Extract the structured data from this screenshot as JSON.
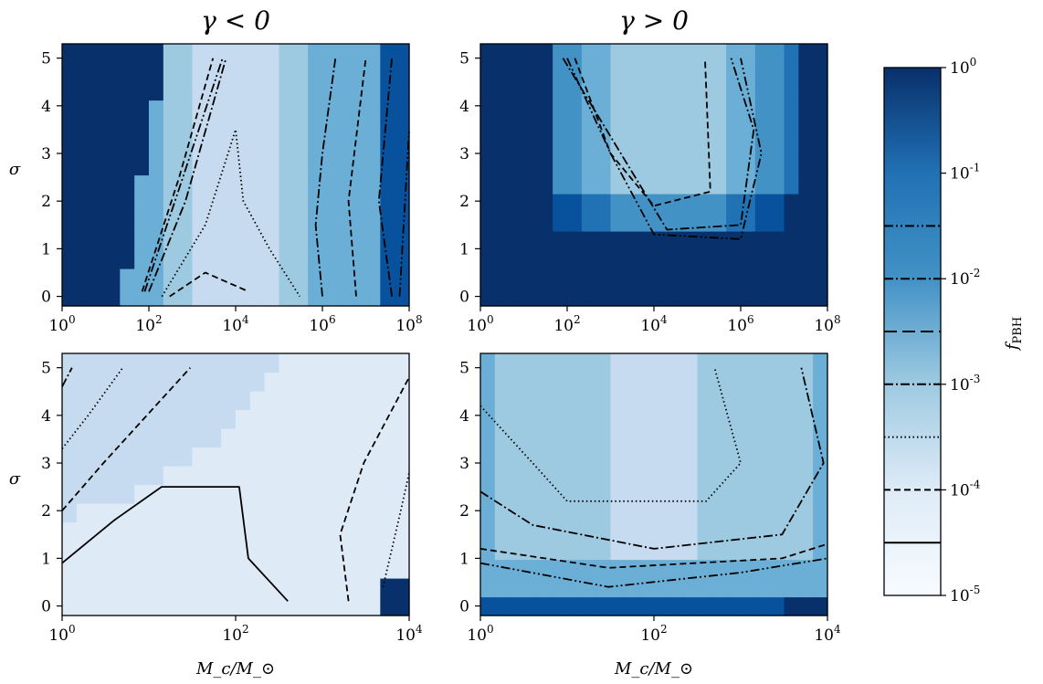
{
  "chart_data": [
    {
      "type": "heatmap",
      "panel": "top-left",
      "title": "γ < 0",
      "xlabel": "",
      "ylabel": "σ",
      "xscale": "log",
      "xlim": [
        1,
        100000000
      ],
      "ylim": [
        -0.2,
        5.3
      ],
      "xticks": [
        "10^0",
        "10^2",
        "10^4",
        "10^6",
        "10^8"
      ],
      "yticks": [
        "0",
        "1",
        "2",
        "3",
        "4",
        "5"
      ],
      "contours": [
        {
          "level": "10^-2",
          "style": "dashdotdot",
          "points": [
            [
              80,
              0.1
            ],
            [
              400,
              2
            ],
            [
              5000,
              5
            ]
          ]
        },
        {
          "level": "10^-2",
          "style": "dashdotdot",
          "points": [
            [
              60000000,
              0
            ],
            [
              100000000,
              3.5
            ]
          ]
        },
        {
          "level": "10^-3",
          "style": "dashdot",
          "points": [
            [
              100,
              0.1
            ],
            [
              700,
              2
            ],
            [
              6000,
              5
            ]
          ]
        },
        {
          "level": "10^-3",
          "style": "dashdot",
          "points": [
            [
              1000000,
              0
            ],
            [
              700000,
              1.5
            ],
            [
              1000000,
              3
            ],
            [
              2000000,
              5
            ]
          ]
        },
        {
          "level": "10^-3",
          "style": "dashdot",
          "points": [
            [
              40000000,
              0
            ],
            [
              20000000,
              2
            ],
            [
              40000000,
              5
            ]
          ]
        },
        {
          "level": "10^-3.5",
          "style": "dashed",
          "points": [
            [
              70,
              0.1
            ],
            [
              500,
              2.5
            ],
            [
              3000,
              5
            ]
          ]
        },
        {
          "level": "10^-3.5",
          "style": "dashed",
          "points": [
            [
              6000000,
              0
            ],
            [
              4000000,
              2
            ],
            [
              10000000,
              5
            ]
          ]
        },
        {
          "level": "10^-4",
          "style": "dotted",
          "points": [
            [
              200,
              0
            ],
            [
              2000,
              1.5
            ],
            [
              10000,
              3.5
            ],
            [
              15000,
              2
            ],
            [
              60000,
              1
            ],
            [
              300000,
              0
            ]
          ]
        },
        {
          "level": "10^-4.5",
          "style": "dashed",
          "points": [
            [
              300,
              0
            ],
            [
              2000,
              0.5
            ],
            [
              20000,
              0.1
            ]
          ]
        }
      ]
    },
    {
      "type": "heatmap",
      "panel": "top-right",
      "title": "γ > 0",
      "xlabel": "",
      "ylabel": "",
      "xscale": "log",
      "xlim": [
        1,
        100000000
      ],
      "ylim": [
        -0.2,
        5.3
      ],
      "xticks": [
        "10^0",
        "10^2",
        "10^4",
        "10^6",
        "10^8"
      ],
      "yticks": [
        "0",
        "1",
        "2",
        "3",
        "4",
        "5"
      ],
      "contours": [
        {
          "level": "10^-2",
          "style": "dashdotdot",
          "points": [
            [
              100,
              5
            ],
            [
              1000,
              3
            ],
            [
              10000,
              1.3
            ],
            [
              1000000,
              1.2
            ],
            [
              3000000,
              3
            ],
            [
              1000000,
              5
            ]
          ]
        },
        {
          "level": "10^-2.5",
          "style": "dashdot",
          "points": [
            [
              80,
              5
            ],
            [
              800,
              3.5
            ],
            [
              20000,
              1.4
            ],
            [
              1000000,
              1.5
            ],
            [
              2000000,
              3.5
            ],
            [
              600000,
              5
            ]
          ]
        },
        {
          "level": "10^-3",
          "style": "dashed",
          "points": [
            [
              150,
              5
            ],
            [
              1000,
              3
            ],
            [
              10000,
              1.9
            ],
            [
              200000,
              2.2
            ],
            [
              150000,
              5
            ]
          ]
        }
      ]
    },
    {
      "type": "heatmap",
      "panel": "bottom-left",
      "title": "",
      "xlabel": "M_c/M_⊙",
      "ylabel": "σ",
      "xscale": "log",
      "xlim": [
        1,
        10000
      ],
      "ylim": [
        -0.2,
        5.3
      ],
      "xticks": [
        "10^0",
        "10^2",
        "10^4"
      ],
      "yticks": [
        "0",
        "1",
        "2",
        "3",
        "4",
        "5"
      ],
      "contours": [
        {
          "level": "10^-3.5",
          "style": "dashdot",
          "points": [
            [
              1,
              4.6
            ],
            [
              1.3,
              5
            ]
          ]
        },
        {
          "level": "10^-4",
          "style": "dotted",
          "points": [
            [
              1,
              3.3
            ],
            [
              2,
              4
            ],
            [
              5,
              5
            ]
          ]
        },
        {
          "level": "10^-4",
          "style": "dotted",
          "points": [
            [
              5000,
              0.4
            ],
            [
              8000,
              2
            ],
            [
              10000,
              2.8
            ]
          ]
        },
        {
          "level": "10^-4.5",
          "style": "dashed",
          "points": [
            [
              1,
              2
            ],
            [
              3,
              3
            ],
            [
              30,
              5
            ]
          ]
        },
        {
          "level": "10^-4.5",
          "style": "dashed",
          "points": [
            [
              2000,
              0.1
            ],
            [
              1600,
              1.5
            ],
            [
              3000,
              3
            ],
            [
              10000,
              4.8
            ]
          ]
        },
        {
          "level": "10^-5",
          "style": "solid",
          "points": [
            [
              1,
              0.9
            ],
            [
              4,
              1.8
            ],
            [
              14,
              2.5
            ],
            [
              110,
              2.5
            ],
            [
              140,
              1
            ],
            [
              400,
              0.1
            ]
          ]
        }
      ]
    },
    {
      "type": "heatmap",
      "panel": "bottom-right",
      "title": "",
      "xlabel": "M_c/M_⊙",
      "ylabel": "",
      "xscale": "log",
      "xlim": [
        1,
        10000
      ],
      "ylim": [
        -0.2,
        5.3
      ],
      "xticks": [
        "10^0",
        "10^2",
        "10^4"
      ],
      "yticks": [
        "0",
        "1",
        "2",
        "3",
        "4",
        "5"
      ],
      "contours": [
        {
          "level": "10^-4",
          "style": "dotted",
          "points": [
            [
              1,
              4.2
            ],
            [
              4,
              3
            ],
            [
              10,
              2.2
            ],
            [
              400,
              2.2
            ],
            [
              1000,
              3
            ],
            [
              500,
              5
            ]
          ]
        },
        {
          "level": "10^-3",
          "style": "dashdot",
          "points": [
            [
              1,
              2.4
            ],
            [
              4,
              1.7
            ],
            [
              100,
              1.2
            ],
            [
              3000,
              1.5
            ],
            [
              9000,
              3
            ],
            [
              5000,
              5
            ]
          ]
        },
        {
          "level": "10^-3.5",
          "style": "dashed",
          "points": [
            [
              1,
              1.2
            ],
            [
              30,
              0.8
            ],
            [
              3000,
              1
            ],
            [
              10000,
              1.3
            ]
          ]
        },
        {
          "level": "10^-2",
          "style": "dashdotdot",
          "points": [
            [
              1,
              0.9
            ],
            [
              30,
              0.4
            ],
            [
              1000,
              0.7
            ],
            [
              10000,
              1
            ]
          ]
        }
      ]
    }
  ],
  "colorbar": {
    "label": "f_PBH",
    "scale": "log",
    "range": [
      1e-05,
      1
    ],
    "ticks": [
      "10^0",
      "10^-1",
      "10^-2",
      "10^-3",
      "10^-4",
      "10^-5"
    ],
    "contour_levels": [
      {
        "value": "10^-1.5",
        "style": "dashdotdot"
      },
      {
        "value": "10^-2",
        "style": "dashdot"
      },
      {
        "value": "10^-2.5",
        "style": "longdash"
      },
      {
        "value": "10^-3",
        "style": "dashdot"
      },
      {
        "value": "10^-3.5",
        "style": "dotted"
      },
      {
        "value": "10^-4",
        "style": "dashed"
      },
      {
        "value": "10^-4.5",
        "style": "solid"
      }
    ]
  },
  "colors": {
    "dark": "#08306b",
    "mid": "#4292c6",
    "light": "#deebf7",
    "lightest": "#f7fbff",
    "line": "#000000"
  }
}
